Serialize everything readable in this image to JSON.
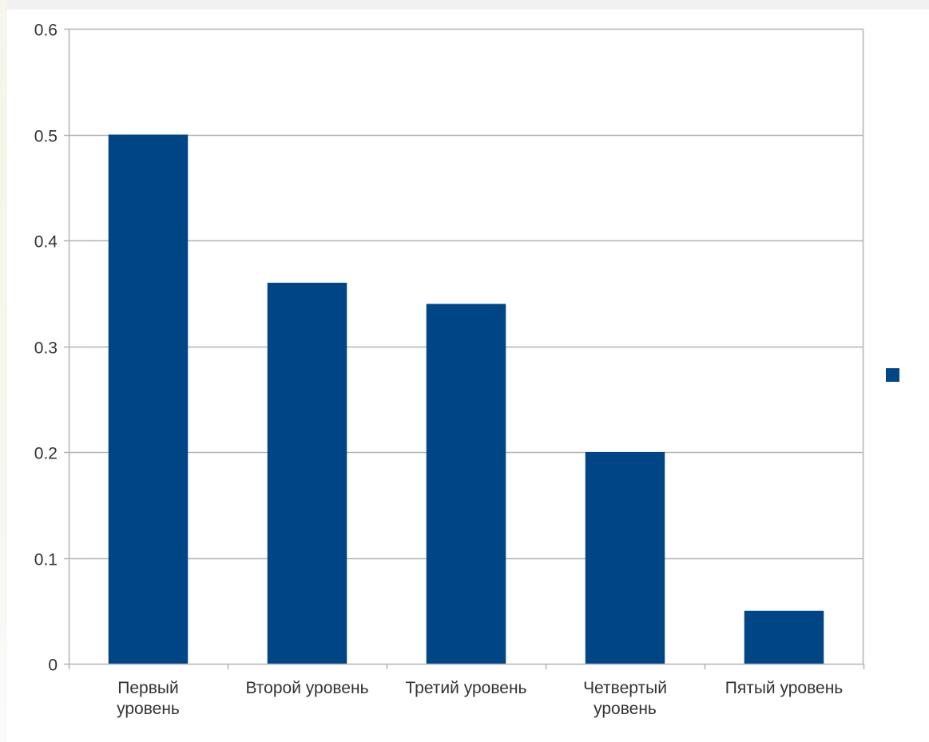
{
  "chart_data": {
    "type": "bar",
    "categories": [
      [
        "Первый",
        "уровень"
      ],
      [
        "Второй уровень"
      ],
      [
        "Третий уровень"
      ],
      [
        "Четвертый",
        "уровень"
      ],
      [
        "Пятый уровень"
      ]
    ],
    "series": [
      {
        "values": [
          0.5,
          0.36,
          0.34,
          0.2,
          0.05
        ]
      }
    ],
    "ylim": [
      0,
      0.6
    ],
    "yticks": [
      0,
      0.1,
      0.2,
      0.3,
      0.4,
      0.5,
      0.6
    ],
    "ytick_labels": [
      "0",
      "0.1",
      "0.2",
      "0.3",
      "0.4",
      "0.5",
      "0.6"
    ],
    "grid": true,
    "legend_position": "right",
    "bar_color": "#004586",
    "grid_color": "#b3b3b3"
  }
}
